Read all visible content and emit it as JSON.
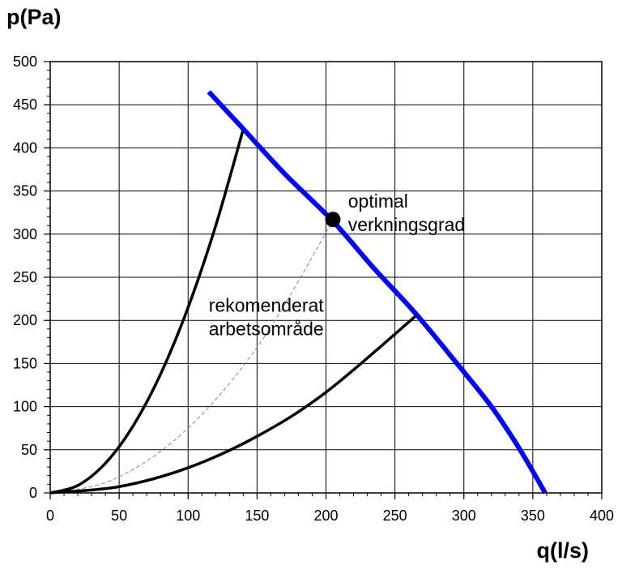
{
  "chart_data": {
    "type": "line",
    "xlabel": "q(l/s)",
    "ylabel": "p(Pa)",
    "xlim": [
      0,
      400
    ],
    "ylim": [
      0,
      500
    ],
    "x_ticks": [
      0,
      50,
      100,
      150,
      200,
      250,
      300,
      350,
      400
    ],
    "y_ticks": [
      0,
      50,
      100,
      150,
      200,
      250,
      300,
      350,
      400,
      450,
      500
    ],
    "grid": true,
    "series": [
      {
        "style": "fan-curve",
        "color": "#0000ff",
        "x": [
          115,
          140,
          170,
          205,
          235,
          265,
          295,
          320,
          340,
          359
        ],
        "y": [
          465,
          422,
          370,
          315,
          260,
          208,
          150,
          100,
          52,
          0
        ]
      },
      {
        "style": "system-curve-upper",
        "color": "#000000",
        "x": [
          0,
          20,
          40,
          60,
          80,
          100,
          120,
          140
        ],
        "y": [
          0,
          8.6,
          34.4,
          77.4,
          137.6,
          215,
          309.6,
          421.5
        ]
      },
      {
        "style": "system-curve-optimal",
        "color": "#888888",
        "dashed": true,
        "x": [
          0,
          40,
          80,
          120,
          160,
          205
        ],
        "y": [
          0,
          12,
          48.1,
          108.2,
          192.4,
          316
        ]
      },
      {
        "style": "system-curve-lower",
        "color": "#000000",
        "x": [
          0,
          50,
          100,
          150,
          200,
          266
        ],
        "y": [
          0,
          7.3,
          29.2,
          65.6,
          116.7,
          206.4
        ]
      }
    ],
    "points": [
      {
        "x": 205,
        "y": 317,
        "color": "#000000"
      }
    ],
    "annotations": [
      {
        "lines": [
          "optimal",
          "verkningsgrad"
        ],
        "x": 216,
        "y": 331
      },
      {
        "lines": [
          "rekomenderat",
          "arbetsområde"
        ],
        "x": 115,
        "y": 210
      }
    ]
  }
}
